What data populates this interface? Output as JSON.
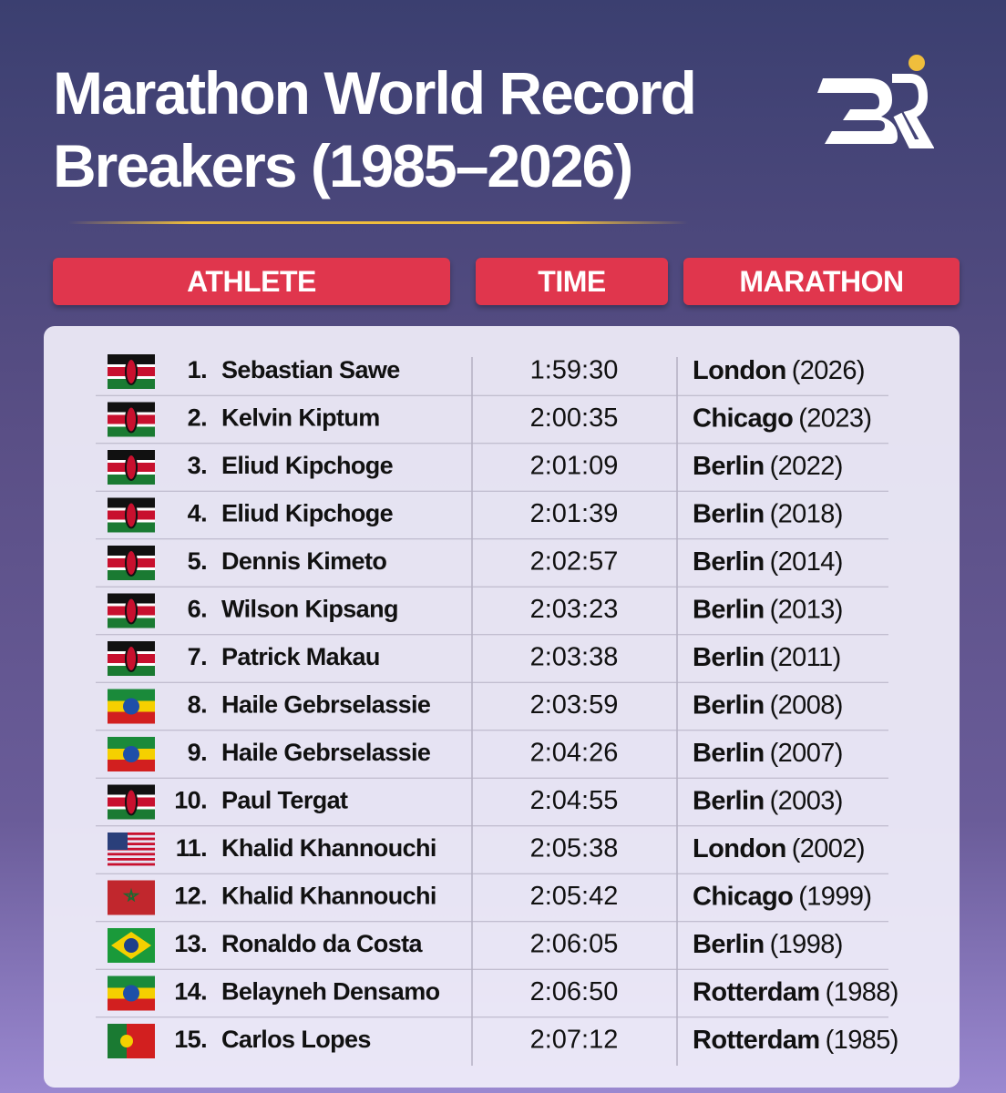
{
  "header": {
    "title": "Marathon World Record Breakers (1985–2026)"
  },
  "table": {
    "columns": [
      "ATHLETE",
      "TIME",
      "MARATHON"
    ],
    "rows": [
      {
        "rank": "1.",
        "athlete": "Sebastian Sawe",
        "time": "1:59:30",
        "city": "London",
        "year": "(2026)"
      },
      {
        "rank": "2.",
        "athlete": "Kelvin Kiptum",
        "time": "2:00:35",
        "city": "Chicago",
        "year": "(2023)"
      },
      {
        "rank": "3.",
        "athlete": "Eliud Kipchoge",
        "time": "2:01:09",
        "city": "Berlin",
        "year": "(2022)"
      },
      {
        "rank": "4.",
        "athlete": "Eliud Kipchoge",
        "time": "2:01:39",
        "city": "Berlin",
        "year": "(2018)"
      },
      {
        "rank": "5.",
        "athlete": "Dennis Kimeto",
        "time": "2:02:57",
        "city": "Berlin",
        "year": "(2014)"
      },
      {
        "rank": "6.",
        "athlete": "Wilson Kipsang",
        "time": "2:03:23",
        "city": "Berlin",
        "year": "(2013)"
      },
      {
        "rank": "7.",
        "athlete": "Patrick Makau",
        "time": "2:03:38",
        "city": "Berlin",
        "year": "(2011)"
      },
      {
        "rank": "8.",
        "athlete": "Haile Gebrselassie",
        "time": "2:03:59",
        "city": "Berlin",
        "year": "(2008)"
      },
      {
        "rank": "9.",
        "athlete": "Haile Gebrselassie",
        "time": "2:04:26",
        "city": "Berlin",
        "year": "(2007)"
      },
      {
        "rank": "10.",
        "athlete": "Paul Tergat",
        "time": "2:04:55",
        "city": "Berlin",
        "year": "(2003)"
      },
      {
        "rank": "11.",
        "athlete": "Khalid Khannouchi",
        "time": "2:05:38",
        "city": "London",
        "year": "(2002)"
      },
      {
        "rank": "12.",
        "athlete": "Khalid Khannouchi",
        "time": "2:05:42",
        "city": "Chicago",
        "year": "(1999)"
      },
      {
        "rank": "13.",
        "athlete": "Ronaldo da Costa",
        "time": "2:06:05",
        "city": "Berlin",
        "year": "(1998)"
      },
      {
        "rank": "14.",
        "athlete": "Belayneh Densamo",
        "time": "2:06:50",
        "city": "Rotterdam",
        "year": "(1988)"
      },
      {
        "rank": "15.",
        "athlete": "Carlos Lopes",
        "time": "2:07:12",
        "city": "Rotterdam",
        "year": "(1985)"
      }
    ]
  }
}
